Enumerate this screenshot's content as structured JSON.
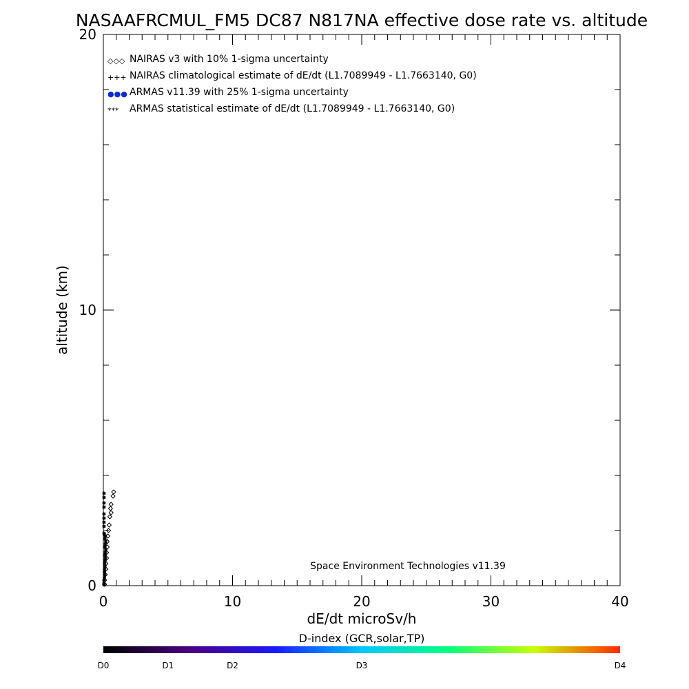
{
  "chart_data": {
    "type": "scatter",
    "title": "NASAAFRCMUL_FM5 DC87 N817NA effective dose rate vs. altitude",
    "xlabel": "dE/dt microSv/h",
    "ylabel": "altitude (km)",
    "xlim": [
      0,
      40
    ],
    "ylim": [
      0,
      20
    ],
    "x_ticks": [
      "0",
      "10",
      "20",
      "30",
      "40"
    ],
    "y_ticks": [
      "0",
      "10",
      "20"
    ],
    "legend_position": "top-left",
    "legend": [
      {
        "symbol": "◇◇◇",
        "label": "NAIRAS v3 with 10% 1-sigma uncertainty",
        "color": "#000000"
      },
      {
        "symbol": "+++",
        "label": "NAIRAS climatological estimate of dE/dt (L1.7089949 - L1.7663140, G0)",
        "color": "#000000"
      },
      {
        "symbol": "●●●",
        "label": "ARMAS v11.39 with 25% 1-sigma uncertainty",
        "color": "#0a2adf"
      },
      {
        "symbol": "***",
        "label": "ARMAS statistical estimate of dE/dt (L1.7089949 - L1.7663140, G0)",
        "color": "#000000"
      }
    ],
    "annotation": "Space Environment Technologies v11.39",
    "series": [
      {
        "name": "NAIRAS v3 with 10% 1-sigma uncertainty",
        "marker": "diamond",
        "points": [
          [
            0.8,
            3.4
          ],
          [
            0.75,
            3.25
          ],
          [
            0.6,
            2.95
          ],
          [
            0.55,
            2.8
          ],
          [
            0.6,
            2.65
          ],
          [
            0.5,
            2.5
          ],
          [
            0.45,
            2.2
          ],
          [
            0.4,
            2.0
          ],
          [
            0.35,
            1.8
          ],
          [
            0.3,
            1.6
          ],
          [
            0.3,
            1.4
          ],
          [
            0.25,
            1.2
          ],
          [
            0.25,
            1.0
          ],
          [
            0.2,
            0.8
          ],
          [
            0.2,
            0.6
          ],
          [
            0.15,
            0.4
          ],
          [
            0.1,
            0.2
          ],
          [
            0.1,
            0.05
          ]
        ]
      },
      {
        "name": "ARMAS statistical estimate of dE/dt",
        "marker": "asterisk",
        "points": [
          [
            0.05,
            3.35
          ],
          [
            0.05,
            3.2
          ],
          [
            0.05,
            3.0
          ],
          [
            0.05,
            2.85
          ],
          [
            0.05,
            2.6
          ],
          [
            0.05,
            2.45
          ],
          [
            0.05,
            2.3
          ],
          [
            0.05,
            2.15
          ],
          [
            0.05,
            1.9
          ],
          [
            0.08,
            1.85
          ],
          [
            0.15,
            1.8
          ],
          [
            0.12,
            1.7
          ],
          [
            0.18,
            1.6
          ],
          [
            0.15,
            1.5
          ],
          [
            0.12,
            1.4
          ],
          [
            0.18,
            1.3
          ],
          [
            0.15,
            1.2
          ],
          [
            0.12,
            1.1
          ],
          [
            0.15,
            1.0
          ],
          [
            0.12,
            0.9
          ],
          [
            0.1,
            0.8
          ],
          [
            0.12,
            0.7
          ],
          [
            0.1,
            0.6
          ],
          [
            0.08,
            0.5
          ],
          [
            0.1,
            0.4
          ],
          [
            0.08,
            0.3
          ],
          [
            0.06,
            0.2
          ],
          [
            0.05,
            0.1
          ],
          [
            0.05,
            0.03
          ]
        ]
      }
    ]
  },
  "colorbar": {
    "title": "D-index (GCR,solar,TP)",
    "labels": [
      {
        "text": "D0",
        "pos": 0
      },
      {
        "text": "D1",
        "pos": 0.125
      },
      {
        "text": "D2",
        "pos": 0.25
      },
      {
        "text": "D3",
        "pos": 0.5
      },
      {
        "text": "D4",
        "pos": 1
      }
    ],
    "colors": [
      "#000000",
      "#4b0082",
      "#1a1aff",
      "#00c8ff",
      "#00ff80",
      "#c8ff00",
      "#ff2a00"
    ]
  }
}
